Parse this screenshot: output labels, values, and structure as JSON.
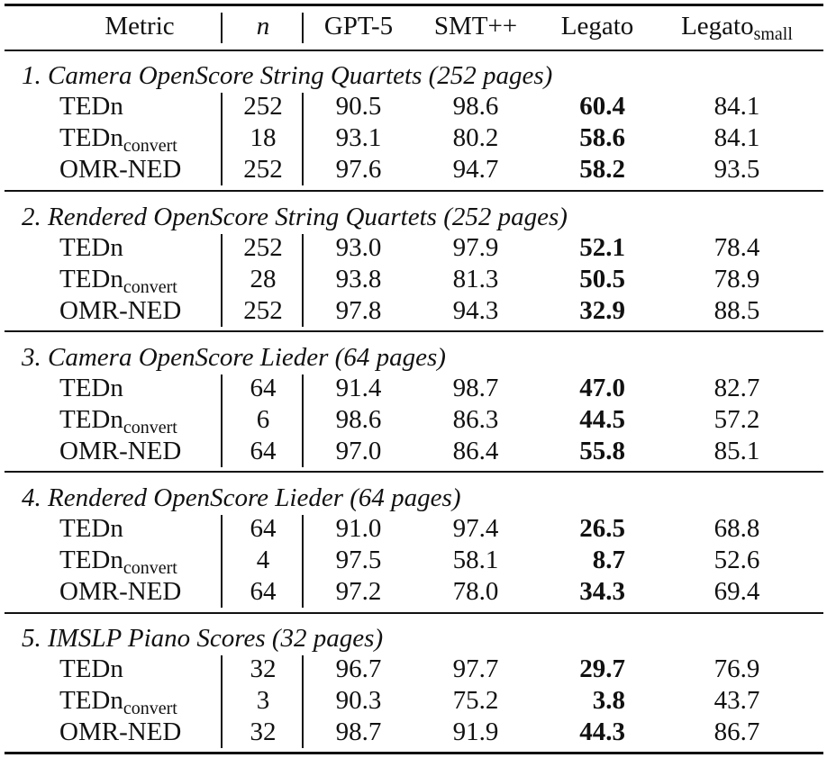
{
  "headers": {
    "metric": "Metric",
    "n": "n",
    "gpt5": "GPT-5",
    "smt": "SMT++",
    "legato": "Legato",
    "legato_small_base": "Legato",
    "legato_small_sub": "small"
  },
  "metric_labels": {
    "tedn": "TEDn",
    "tedn_convert_base": "TEDn",
    "tedn_convert_sub": "convert",
    "omr_ned": "OMR-NED"
  },
  "sections": [
    {
      "title": "1. Camera OpenScore String Quartets (252 pages)",
      "rows": [
        {
          "n": "252",
          "gpt5": "90.5",
          "smt": "98.6",
          "legato": "60.4",
          "legato_small": "84.1"
        },
        {
          "n": "18",
          "gpt5": "93.1",
          "smt": "80.2",
          "legato": "58.6",
          "legato_small": "84.1"
        },
        {
          "n": "252",
          "gpt5": "97.6",
          "smt": "94.7",
          "legato": "58.2",
          "legato_small": "93.5"
        }
      ]
    },
    {
      "title": "2. Rendered OpenScore String Quartets (252 pages)",
      "rows": [
        {
          "n": "252",
          "gpt5": "93.0",
          "smt": "97.9",
          "legato": "52.1",
          "legato_small": "78.4"
        },
        {
          "n": "28",
          "gpt5": "93.8",
          "smt": "81.3",
          "legato": "50.5",
          "legato_small": "78.9"
        },
        {
          "n": "252",
          "gpt5": "97.8",
          "smt": "94.3",
          "legato": "32.9",
          "legato_small": "88.5"
        }
      ]
    },
    {
      "title": "3. Camera OpenScore Lieder (64 pages)",
      "rows": [
        {
          "n": "64",
          "gpt5": "91.4",
          "smt": "98.7",
          "legato": "47.0",
          "legato_small": "82.7"
        },
        {
          "n": "6",
          "gpt5": "98.6",
          "smt": "86.3",
          "legato": "44.5",
          "legato_small": "57.2"
        },
        {
          "n": "64",
          "gpt5": "97.0",
          "smt": "86.4",
          "legato": "55.8",
          "legato_small": "85.1"
        }
      ]
    },
    {
      "title": "4. Rendered OpenScore Lieder (64 pages)",
      "rows": [
        {
          "n": "64",
          "gpt5": "91.0",
          "smt": "97.4",
          "legato": "26.5",
          "legato_small": "68.8"
        },
        {
          "n": "4",
          "gpt5": "97.5",
          "smt": "58.1",
          "legato": "8.7",
          "legato_small": "52.6"
        },
        {
          "n": "64",
          "gpt5": "97.2",
          "smt": "78.0",
          "legato": "34.3",
          "legato_small": "69.4"
        }
      ]
    },
    {
      "title": "5. IMSLP Piano Scores (32 pages)",
      "rows": [
        {
          "n": "32",
          "gpt5": "96.7",
          "smt": "97.7",
          "legato": "29.7",
          "legato_small": "76.9"
        },
        {
          "n": "3",
          "gpt5": "90.3",
          "smt": "75.2",
          "legato": "3.8",
          "legato_small": "43.7"
        },
        {
          "n": "32",
          "gpt5": "98.7",
          "smt": "91.9",
          "legato": "44.3",
          "legato_small": "86.7"
        }
      ]
    }
  ]
}
